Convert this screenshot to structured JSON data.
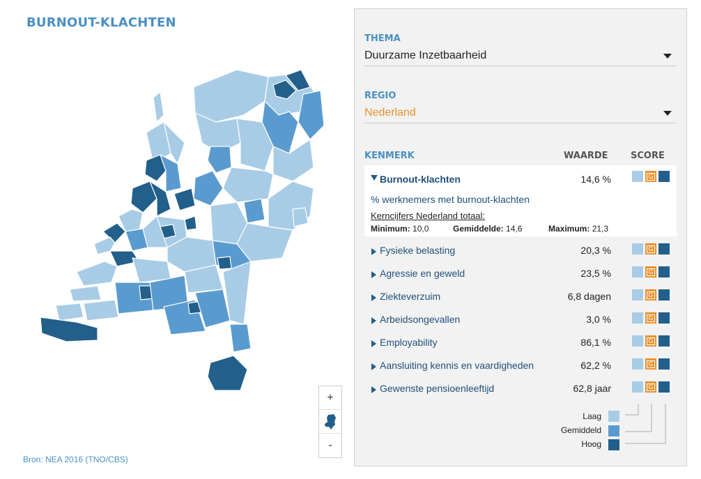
{
  "title": "BURNOUT-KLACHTEN",
  "source": "Bron: NEA 2016 (TNO/CBS)",
  "zoom": {
    "plus": "+",
    "minus": "-",
    "reset_icon": "netherlands-map-icon"
  },
  "panel": {
    "thema_label": "THEMA",
    "thema_value": "Duurzame Inzetbaarheid",
    "regio_label": "REGIO",
    "regio_value": "Nederland",
    "kenmerk_header": "KENMERK",
    "waarde_header": "WAARDE",
    "score_header": "SCORE",
    "expanded": {
      "name": "Burnout-klachten",
      "value": "14,6 %",
      "description": "% werknemers met burnout-klachten",
      "kerncijfers": "Kerncijfers Nederland totaal:",
      "min_label": "Minimum:",
      "min_value": "10,0",
      "avg_label": "Gemiddelde:",
      "avg_value": "14,6",
      "max_label": "Maximum:",
      "max_value": "21,3"
    },
    "rows": [
      {
        "name": "Fysieke belasting",
        "value": "20,3 %"
      },
      {
        "name": "Agressie en geweld",
        "value": "23,5 %"
      },
      {
        "name": "Ziekteverzuim",
        "value": "6,8 dagen"
      },
      {
        "name": "Arbeidsongevallen",
        "value": "3,0 %"
      },
      {
        "name": "Employability",
        "value": "86,1 %"
      },
      {
        "name": "Aansluiting kennis en vaardigheden",
        "value": "62,2 %"
      },
      {
        "name": "Gewenste pensioenleeftijd",
        "value": "62,8 jaar"
      }
    ],
    "score_badge": "G",
    "legend": {
      "low": "Laag",
      "mid": "Gemiddeld",
      "high": "Hoog"
    }
  },
  "colors": {
    "low": "#a8cce6",
    "mid": "#5a9bcf",
    "high": "#225f8a",
    "accent": "#e8922f",
    "title": "#4a90c4"
  }
}
